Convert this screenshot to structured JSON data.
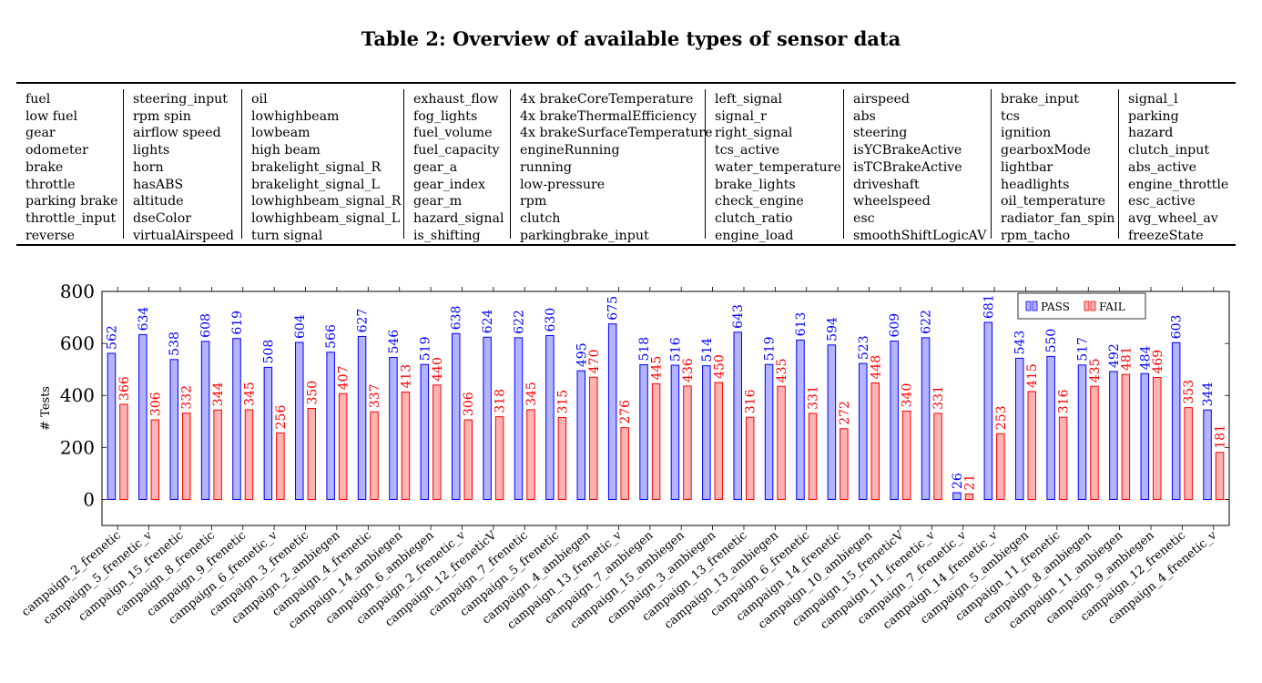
{
  "caption": "Table 2: Overview of available types of sensor data",
  "table": {
    "columns": [
      [
        "fuel",
        "low fuel",
        "gear",
        "odometer",
        "brake",
        "throttle",
        "parking brake",
        "throttle_input",
        "reverse"
      ],
      [
        "steering_input",
        "rpm spin",
        "airflow speed",
        "lights",
        "horn",
        "hasABS",
        "altitude",
        "dseColor",
        "virtualAirspeed"
      ],
      [
        "oil",
        "lowhighbeam",
        "lowbeam",
        "high beam",
        "brakelight_signal_R",
        "brakelight_signal_L",
        "lowhighbeam_signal_R",
        "lowhighbeam_signal_L",
        "turn signal"
      ],
      [
        "exhaust_flow",
        "fog_lights",
        "fuel_volume",
        "fuel_capacity",
        "gear_a",
        "gear_index",
        "gear_m",
        "hazard_signal",
        "is_shifting"
      ],
      [
        "4x brakeCoreTemperature",
        "4x brakeThermalEfficiency",
        "4x brakeSurfaceTemperature",
        "engineRunning",
        "running",
        "low-pressure",
        "rpm",
        "clutch",
        "parkingbrake_input"
      ],
      [
        "left_signal",
        "signal_r",
        "right_signal",
        "tcs_active",
        "water_temperature",
        "brake_lights",
        "check_engine",
        "clutch_ratio",
        "engine_load"
      ],
      [
        "airspeed",
        "abs",
        "steering",
        "isYCBrakeActive",
        "isTCBrakeActive",
        "driveshaft",
        "wheelspeed",
        "esc",
        "smoothShiftLogicAV"
      ],
      [
        "brake_input",
        "tcs",
        "ignition",
        "gearboxMode",
        "lightbar",
        "headlights",
        "oil_temperature",
        "radiator_fan_spin",
        "rpm_tacho"
      ],
      [
        "signal_l",
        "parking",
        "hazard",
        "clutch_input",
        "abs_active",
        "engine_throttle",
        "esc_active",
        "avg_wheel_av",
        "freezeState"
      ]
    ]
  },
  "chart_data": {
    "type": "bar",
    "ylabel": "# Tests",
    "xlabel": "",
    "ylim": [
      -100,
      800
    ],
    "yticks": [
      0,
      200,
      400,
      600,
      800
    ],
    "legend_position": "top-right",
    "colors": {
      "pass_fill": "#b3b3ff",
      "pass_stroke": "#0000ff",
      "fail_fill": "#ffb3b3",
      "fail_stroke": "#ff0000"
    },
    "categories": [
      "campaign_2_frenetic",
      "campaign_5_frenetic_v",
      "campaign_15_frenetic",
      "campaign_8_frenetic",
      "campaign_9_frenetic",
      "campaign_6_frenetic_v",
      "campaign_3_frenetic",
      "campaign_2_ambiegen",
      "campaign_4_frenetic",
      "campaign_14_ambiegen",
      "campaign_6_ambiegen",
      "campaign_2_frenetic_v",
      "campaign_12_freneticV",
      "campaign_7_frenetic",
      "campaign_5_frenetic",
      "campaign_4_ambiegen",
      "campaign_13_frenetic_v",
      "campaign_7_ambiegen",
      "campaign_15_ambiegen",
      "campaign_3_ambiegen",
      "campaign_13_frenetic",
      "campaign_13_ambiegen",
      "campaign_6_frenetic",
      "campaign_14_frenetic",
      "campaign_10_ambiegen",
      "campaign_15_freneticV",
      "campaign_11_frenetic_v",
      "campaign_7_frenetic_v",
      "campaign_14_frenetic_v",
      "campaign_5_ambiegen",
      "campaign_11_frenetic",
      "campaign_8_ambiegen",
      "campaign_11_ambiegen",
      "campaign_9_ambiegen",
      "campaign_12_frenetic",
      "campaign_4_frenetic_v"
    ],
    "series": [
      {
        "name": "PASS",
        "values": [
          562,
          634,
          538,
          608,
          619,
          508,
          604,
          566,
          627,
          546,
          519,
          638,
          624,
          622,
          630,
          495,
          675,
          518,
          516,
          514,
          643,
          519,
          613,
          594,
          523,
          609,
          622,
          26,
          681,
          543,
          550,
          517,
          492,
          484,
          603,
          344
        ]
      },
      {
        "name": "FAIL",
        "values": [
          366,
          306,
          332,
          344,
          345,
          256,
          350,
          407,
          337,
          413,
          440,
          306,
          318,
          345,
          315,
          470,
          276,
          445,
          436,
          450,
          316,
          435,
          331,
          272,
          448,
          340,
          331,
          21,
          253,
          415,
          316,
          435,
          481,
          469,
          353,
          181
        ]
      }
    ]
  }
}
